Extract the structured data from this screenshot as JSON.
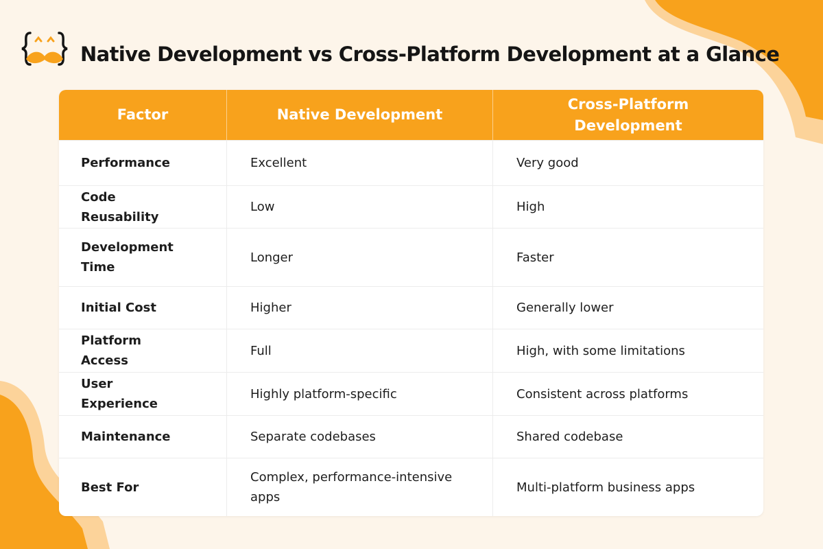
{
  "header": {
    "title": "Native Development vs Cross-Platform Development at a Glance"
  },
  "table": {
    "headers": [
      "Factor",
      "Native Development",
      "Cross-Platform Development"
    ],
    "rows": [
      [
        "Performance",
        "Excellent",
        "Very good"
      ],
      [
        "Code Reusability",
        "Low",
        "High"
      ],
      [
        "Development Time",
        "Longer",
        "Faster"
      ],
      [
        "Initial Cost",
        "Higher",
        "Generally lower"
      ],
      [
        "Platform Access",
        "Full",
        "High, with some limitations"
      ],
      [
        "User Experience",
        "Highly platform-specific",
        "Consistent across platforms"
      ],
      [
        "Maintenance",
        "Separate codebases",
        "Shared codebase"
      ],
      [
        "Best For",
        "Complex, performance-intensive apps",
        "Multi-platform business apps"
      ]
    ]
  }
}
